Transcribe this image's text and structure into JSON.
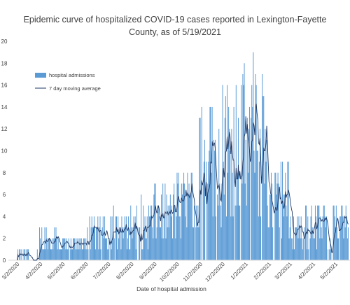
{
  "chart_data": {
    "type": "bar",
    "title_lines": [
      "Epidemic curve of hospitalized COVID-19 cases reported in Lexington-Fayette",
      "County, as of 5/19/2021"
    ],
    "xlabel": "Date of hospital admission",
    "ylabel": "",
    "ylim": [
      0,
      20
    ],
    "yticks": [
      0,
      2,
      4,
      6,
      8,
      10,
      12,
      14,
      16,
      18,
      20
    ],
    "x_tick_labels": [
      "3/2/2020",
      "4/2/2020",
      "5/2/2020",
      "6/2/2020",
      "7/2/2020",
      "8/2/2020",
      "9/2/2020",
      "10/2/2020",
      "11/2/2020",
      "12/2/2020",
      "1/2/2021",
      "2/2/2021",
      "3/2/2021",
      "4/2/2021",
      "5/2/2021"
    ],
    "date_range": [
      "2020-03-02",
      "2021-05-19"
    ],
    "legend_position": "top-left",
    "legend": [
      {
        "label": "hospital admissions",
        "kind": "bar"
      },
      {
        "label": "7 day moving average",
        "kind": "line"
      }
    ],
    "colors": {
      "bars": "#5b9bd5",
      "average": "#1f3864",
      "text": "#404040"
    },
    "monthly_mean_admissions": [
      {
        "month": "2020-03",
        "mean": 0.4
      },
      {
        "month": "2020-04",
        "mean": 1.8
      },
      {
        "month": "2020-05",
        "mean": 1.3
      },
      {
        "month": "2020-06",
        "mean": 2.2
      },
      {
        "month": "2020-07",
        "mean": 2.8
      },
      {
        "month": "2020-08",
        "mean": 3.3
      },
      {
        "month": "2020-09",
        "mean": 4.2
      },
      {
        "month": "2020-10",
        "mean": 4.8
      },
      {
        "month": "2020-11",
        "mean": 8.5
      },
      {
        "month": "2020-12",
        "mean": 10.5
      },
      {
        "month": "2021-01",
        "mean": 10.0
      },
      {
        "month": "2021-02",
        "mean": 5.5
      },
      {
        "month": "2021-03",
        "mean": 3.0
      },
      {
        "month": "2021-04",
        "mean": 3.0
      },
      {
        "month": "2021-05",
        "mean": 3.0
      }
    ],
    "peaks": [
      {
        "date": "2020-12-02",
        "value": 16
      },
      {
        "date": "2020-12-20",
        "value": 16
      },
      {
        "date": "2021-01-12",
        "value": 19
      },
      {
        "date": "2021-01-25",
        "value": 15
      }
    ],
    "moving_average_peak": {
      "date": "2020-12-05",
      "value": 13.5
    }
  }
}
